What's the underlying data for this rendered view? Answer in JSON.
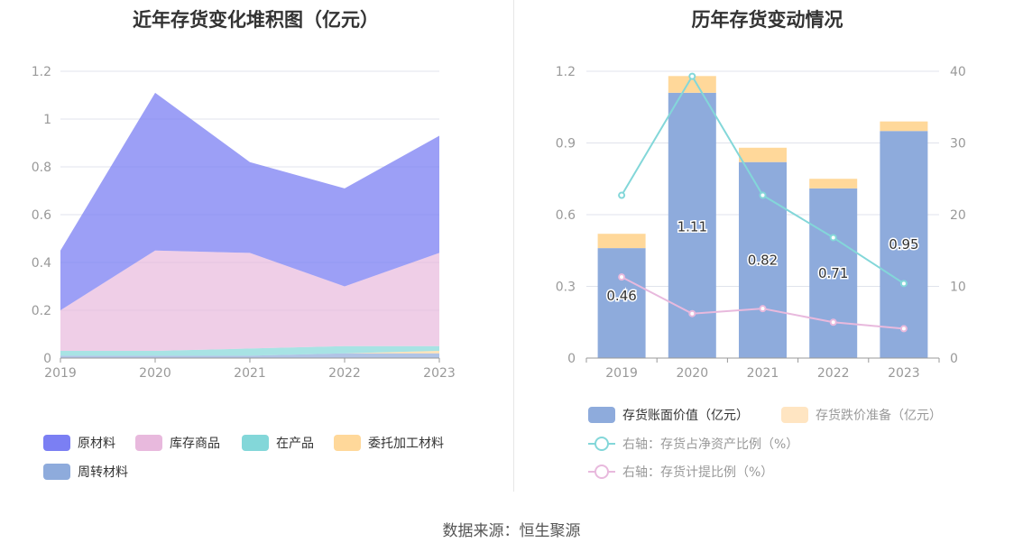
{
  "left_chart": {
    "title": "近年存货变化堆积图（亿元）",
    "legend": [
      {
        "label": "原材料",
        "color": "#7b7ff3"
      },
      {
        "label": "库存商品",
        "color": "#e8b9dd"
      },
      {
        "label": "在产品",
        "color": "#83d7d9"
      },
      {
        "label": "委托加工材料",
        "color": "#ffd89a"
      },
      {
        "label": "周转材料",
        "color": "#8eabdc"
      }
    ]
  },
  "right_chart": {
    "title": "历年存货变动情况",
    "legend": [
      {
        "label": "存货账面价值（亿元）",
        "color": "#8eabdc",
        "kind": "bar"
      },
      {
        "label": "存货跌价准备（亿元）",
        "color": "#ffe5c2",
        "kind": "bar"
      },
      {
        "label": "右轴：存货占净资产比例（%）",
        "color": "#83d7d9",
        "kind": "line"
      },
      {
        "label": "右轴：存货计提比例（%）",
        "color": "#e8b9dd",
        "kind": "line"
      }
    ]
  },
  "source": "数据来源：恒生聚源",
  "chart_data": [
    {
      "type": "area",
      "title": "近年存货变化堆积图（亿元）",
      "stacked": true,
      "x": [
        "2019",
        "2020",
        "2021",
        "2022",
        "2023"
      ],
      "ylim": [
        0,
        1.2
      ],
      "yticks": [
        "0",
        "0.2",
        "0.4",
        "0.6",
        "0.8",
        "1",
        "1.2"
      ],
      "grid": true,
      "legend_position": "bottom",
      "series": [
        {
          "name": "周转材料",
          "color": "#8eabdc",
          "values": [
            0.01,
            0.01,
            0.01,
            0.02,
            0.02
          ]
        },
        {
          "name": "委托加工材料",
          "color": "#ffd89a",
          "values": [
            0.0,
            0.0,
            0.0,
            0.0,
            0.01
          ]
        },
        {
          "name": "在产品",
          "color": "#83d7d9",
          "values": [
            0.02,
            0.02,
            0.03,
            0.03,
            0.02
          ]
        },
        {
          "name": "库存商品",
          "color": "#e8b9dd",
          "values": [
            0.17,
            0.42,
            0.4,
            0.25,
            0.39
          ]
        },
        {
          "name": "原材料",
          "color": "#7b7ff3",
          "values": [
            0.25,
            0.66,
            0.38,
            0.41,
            0.49
          ]
        }
      ]
    },
    {
      "type": "bar",
      "title": "历年存货变动情况",
      "stacked": true,
      "categories": [
        "2019",
        "2020",
        "2021",
        "2022",
        "2023"
      ],
      "ylim": [
        0,
        1.2
      ],
      "yticks": [
        "0",
        "0.3",
        "0.6",
        "0.9",
        "1.2"
      ],
      "y2lim": [
        0,
        40
      ],
      "y2ticks": [
        "0",
        "10",
        "20",
        "30",
        "40"
      ],
      "grid": true,
      "legend_position": "bottom",
      "series": [
        {
          "name": "存货账面价值（亿元）",
          "kind": "bar",
          "axis": "left",
          "color": "#8eabdc",
          "values": [
            0.46,
            1.11,
            0.82,
            0.71,
            0.95
          ],
          "labels": [
            "0.46",
            "1.11",
            "0.82",
            "0.71",
            "0.95"
          ]
        },
        {
          "name": "存货跌价准备（亿元）",
          "kind": "bar",
          "axis": "left",
          "color": "#ffd89a",
          "values": [
            0.06,
            0.07,
            0.06,
            0.04,
            0.04
          ]
        },
        {
          "name": "右轴：存货占净资产比例（%）",
          "kind": "line",
          "axis": "right",
          "color": "#83d7d9",
          "values": [
            22.7,
            39.3,
            22.7,
            16.8,
            10.4
          ]
        },
        {
          "name": "右轴：存货计提比例（%）",
          "kind": "line",
          "axis": "right",
          "color": "#e8b9dd",
          "values": [
            11.3,
            6.2,
            6.9,
            5.0,
            4.1
          ]
        }
      ]
    }
  ]
}
